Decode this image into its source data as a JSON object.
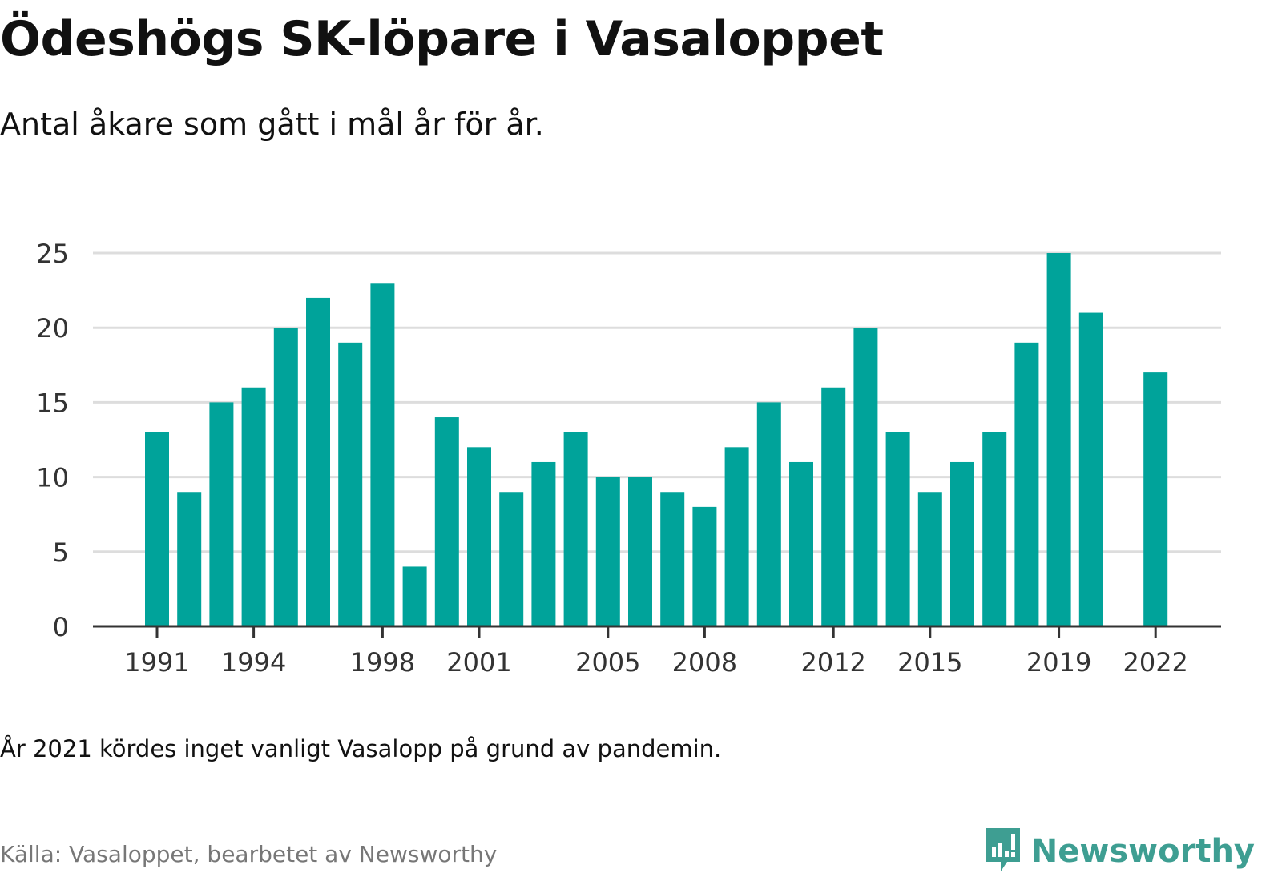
{
  "header": {
    "title": "Ödeshögs SK-löpare i Vasaloppet",
    "subtitle": "Antal åkare som gått i mål år för år."
  },
  "footer": {
    "note": "År 2021 kördes inget vanligt Vasalopp på grund av pandemin.",
    "source": "Källa: Vasaloppet, bearbetet av Newsworthy",
    "brand": "Newsworthy",
    "brand_icon": "newsworthy-logo-icon"
  },
  "colors": {
    "bar": "#00a39a",
    "grid": "#dddddd",
    "axis": "#333333",
    "brand": "#3e9e92"
  },
  "chart_data": {
    "type": "bar",
    "title": "Ödeshögs SK-löpare i Vasaloppet",
    "subtitle": "Antal åkare som gått i mål år för år.",
    "categories": [
      "1991",
      "1992",
      "1993",
      "1994",
      "1995",
      "1996",
      "1997",
      "1998",
      "1999",
      "2000",
      "2001",
      "2002",
      "2003",
      "2004",
      "2005",
      "2006",
      "2007",
      "2008",
      "2009",
      "2010",
      "2011",
      "2012",
      "2013",
      "2014",
      "2015",
      "2016",
      "2017",
      "2018",
      "2019",
      "2020",
      "2021",
      "2022"
    ],
    "values": [
      13,
      9,
      15,
      16,
      20,
      22,
      19,
      23,
      4,
      14,
      12,
      9,
      11,
      13,
      10,
      10,
      9,
      8,
      12,
      15,
      11,
      16,
      20,
      13,
      9,
      11,
      13,
      19,
      25,
      21,
      null,
      17
    ],
    "x_tick_labels": [
      "1991",
      "1994",
      "1998",
      "2001",
      "2005",
      "2008",
      "2012",
      "2015",
      "2019",
      "2022"
    ],
    "y_ticks": [
      0,
      5,
      10,
      15,
      20,
      25
    ],
    "ylim": [
      0,
      25
    ],
    "grid": true,
    "legend": "none",
    "xlabel": "",
    "ylabel": ""
  }
}
